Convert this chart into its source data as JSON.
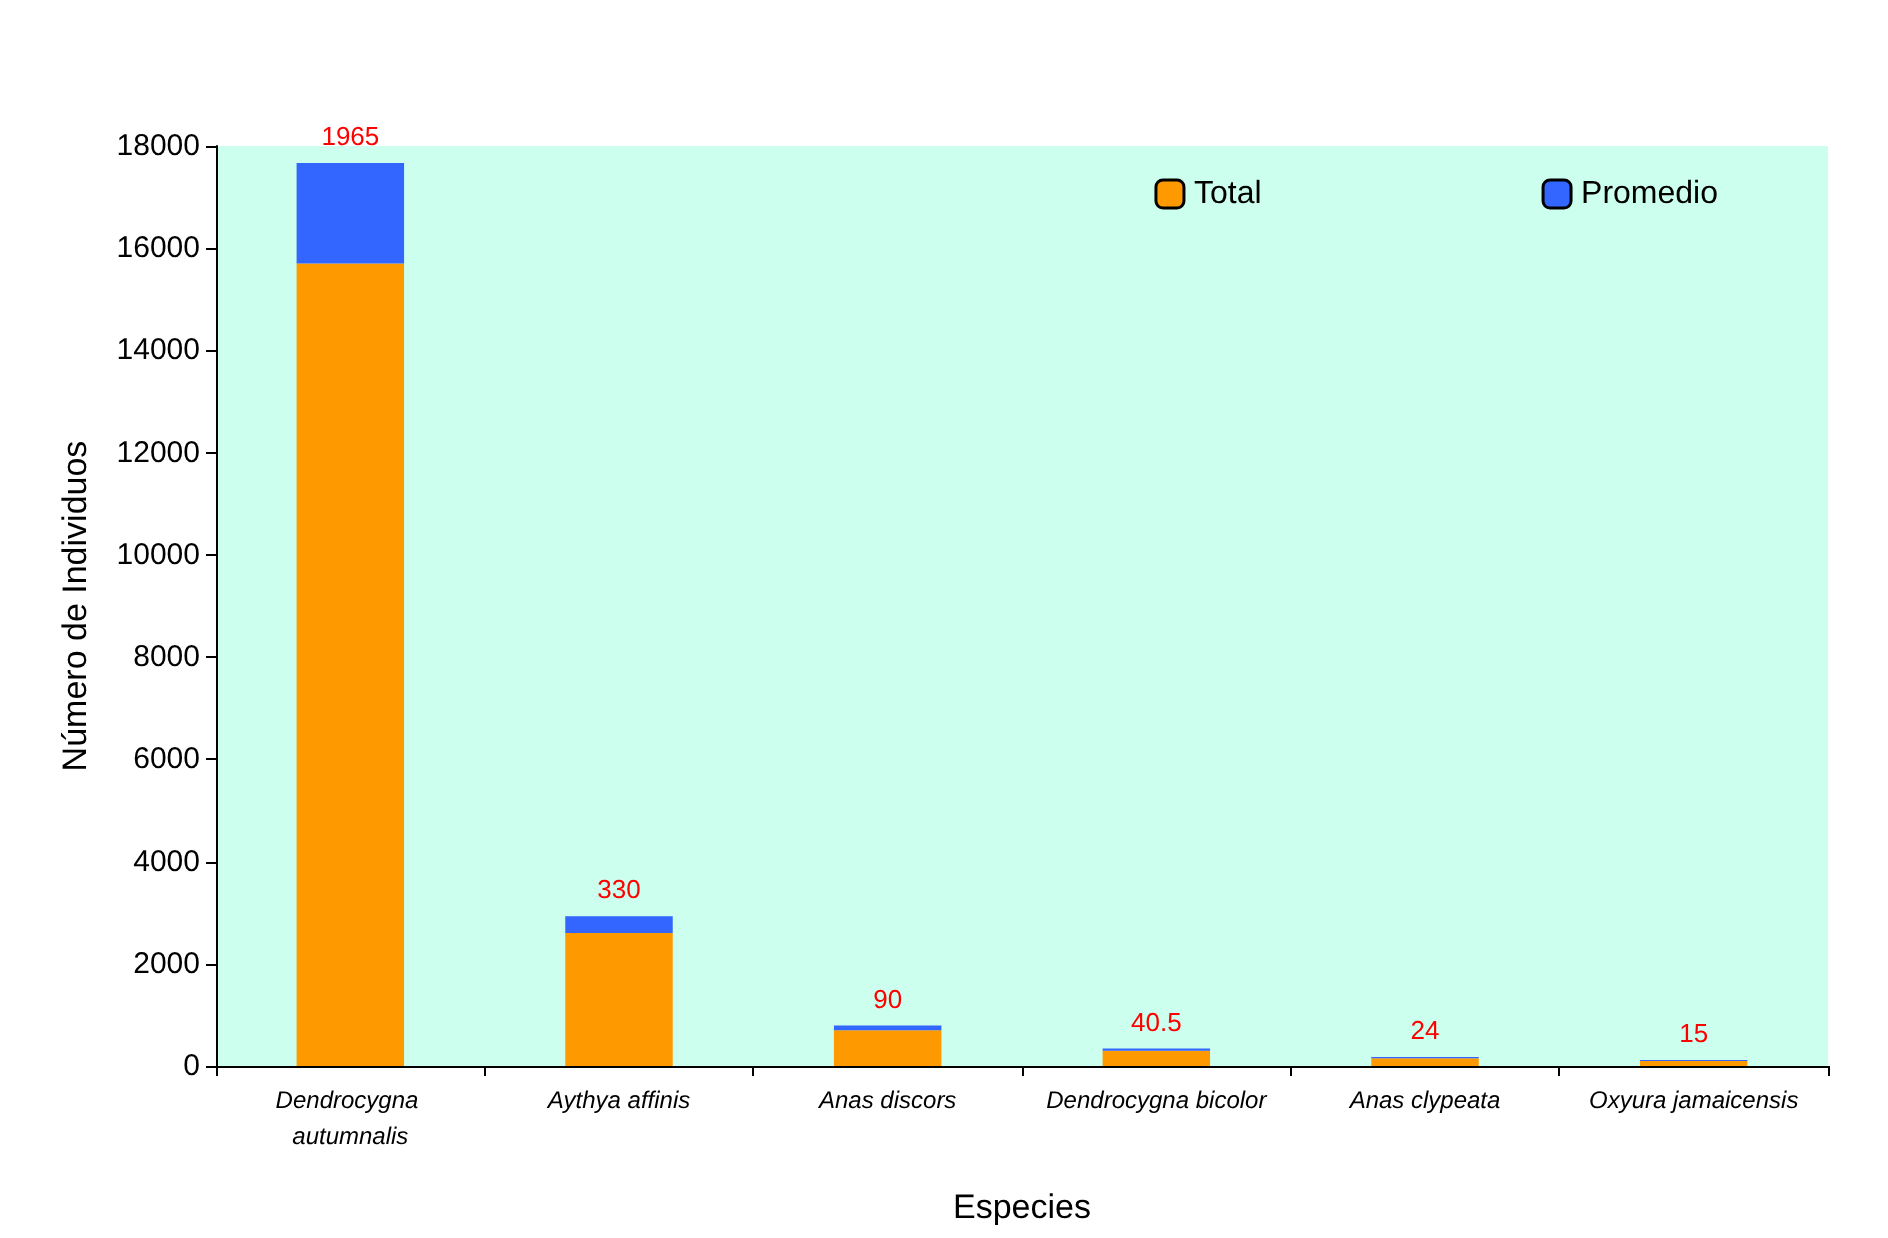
{
  "chart_data": {
    "type": "bar",
    "xlabel": "Especies",
    "ylabel": "Número de Individuos",
    "categories": [
      "Dendrocygna autumnalis",
      "Aythya affinis",
      "Anas discors",
      "Dendrocygna bicolor",
      "Anas clypeata",
      "Oxyura jamaicensis"
    ],
    "stacked": true,
    "series": [
      {
        "name": "Total",
        "color": "#ff9900",
        "values": [
          15700,
          2600,
          700,
          300,
          150,
          100
        ]
      },
      {
        "name": "Promedio",
        "color": "#3366ff",
        "values": [
          1965,
          330,
          90,
          40.5,
          24,
          15
        ],
        "value_labels": [
          "1965",
          "330",
          "90",
          "40.5",
          "24",
          "15"
        ]
      }
    ],
    "ylim": [
      0,
      18000
    ],
    "yticks": [
      0,
      2000,
      4000,
      6000,
      8000,
      10000,
      12000,
      14000,
      16000,
      18000
    ],
    "grid": false,
    "legend": "top right"
  }
}
